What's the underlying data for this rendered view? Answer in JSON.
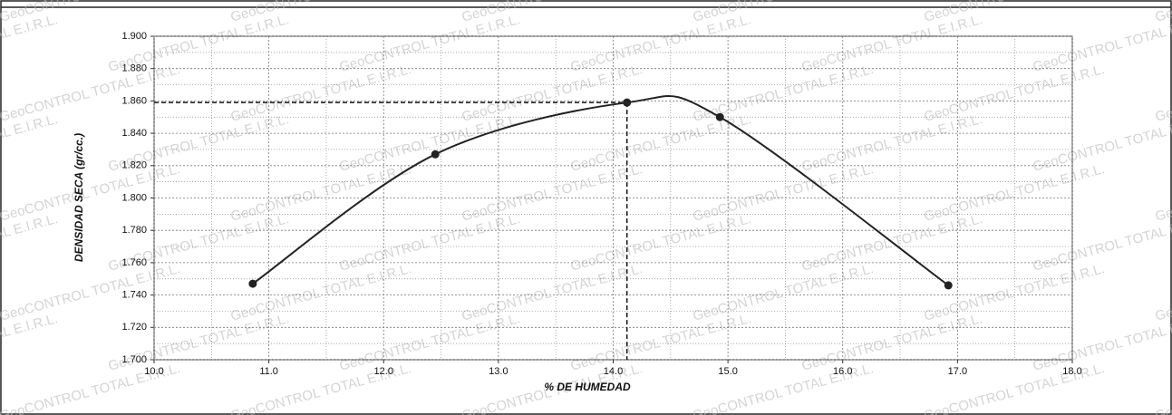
{
  "chart_data": {
    "type": "line",
    "watermark": "GeoCONTROL TOTAL E.I.R.L.",
    "x_label": "% DE HUMEDAD",
    "y_label": "DENSIDAD SECA (gr/cc.)",
    "series": [
      {
        "color": "#222222",
        "x": [
          10.86,
          12.45,
          14.12,
          14.93,
          16.92
        ],
        "values": [
          1.747,
          1.827,
          1.859,
          1.85,
          1.746
        ]
      }
    ],
    "optimum": {
      "x": 14.12,
      "y": 1.859
    },
    "xlim": [
      10,
      18
    ],
    "xticks": [
      {
        "value": 10,
        "label": "10.0"
      },
      {
        "value": 11,
        "label": "11.0"
      },
      {
        "value": 12,
        "label": "12.0"
      },
      {
        "value": 13,
        "label": "13.0"
      },
      {
        "value": 14,
        "label": "14.0"
      },
      {
        "value": 15,
        "label": "15.0"
      },
      {
        "value": 16,
        "label": "16.0"
      },
      {
        "value": 17,
        "label": "17.0"
      },
      {
        "value": 18,
        "label": "18.0"
      }
    ],
    "ylim": [
      1.7,
      1.9
    ],
    "yticks": [
      {
        "value": 1.7,
        "label": "1.700"
      },
      {
        "value": 1.72,
        "label": "1.720"
      },
      {
        "value": 1.74,
        "label": "1.740"
      },
      {
        "value": 1.76,
        "label": "1.760"
      },
      {
        "value": 1.78,
        "label": "1.780"
      },
      {
        "value": 1.8,
        "label": "1.800"
      },
      {
        "value": 1.82,
        "label": "1.820"
      },
      {
        "value": 1.84,
        "label": "1.840"
      },
      {
        "value": 1.86,
        "label": "1.860"
      },
      {
        "value": 1.88,
        "label": "1.880"
      },
      {
        "value": 1.9,
        "label": "1.900"
      }
    ],
    "grid": true
  }
}
